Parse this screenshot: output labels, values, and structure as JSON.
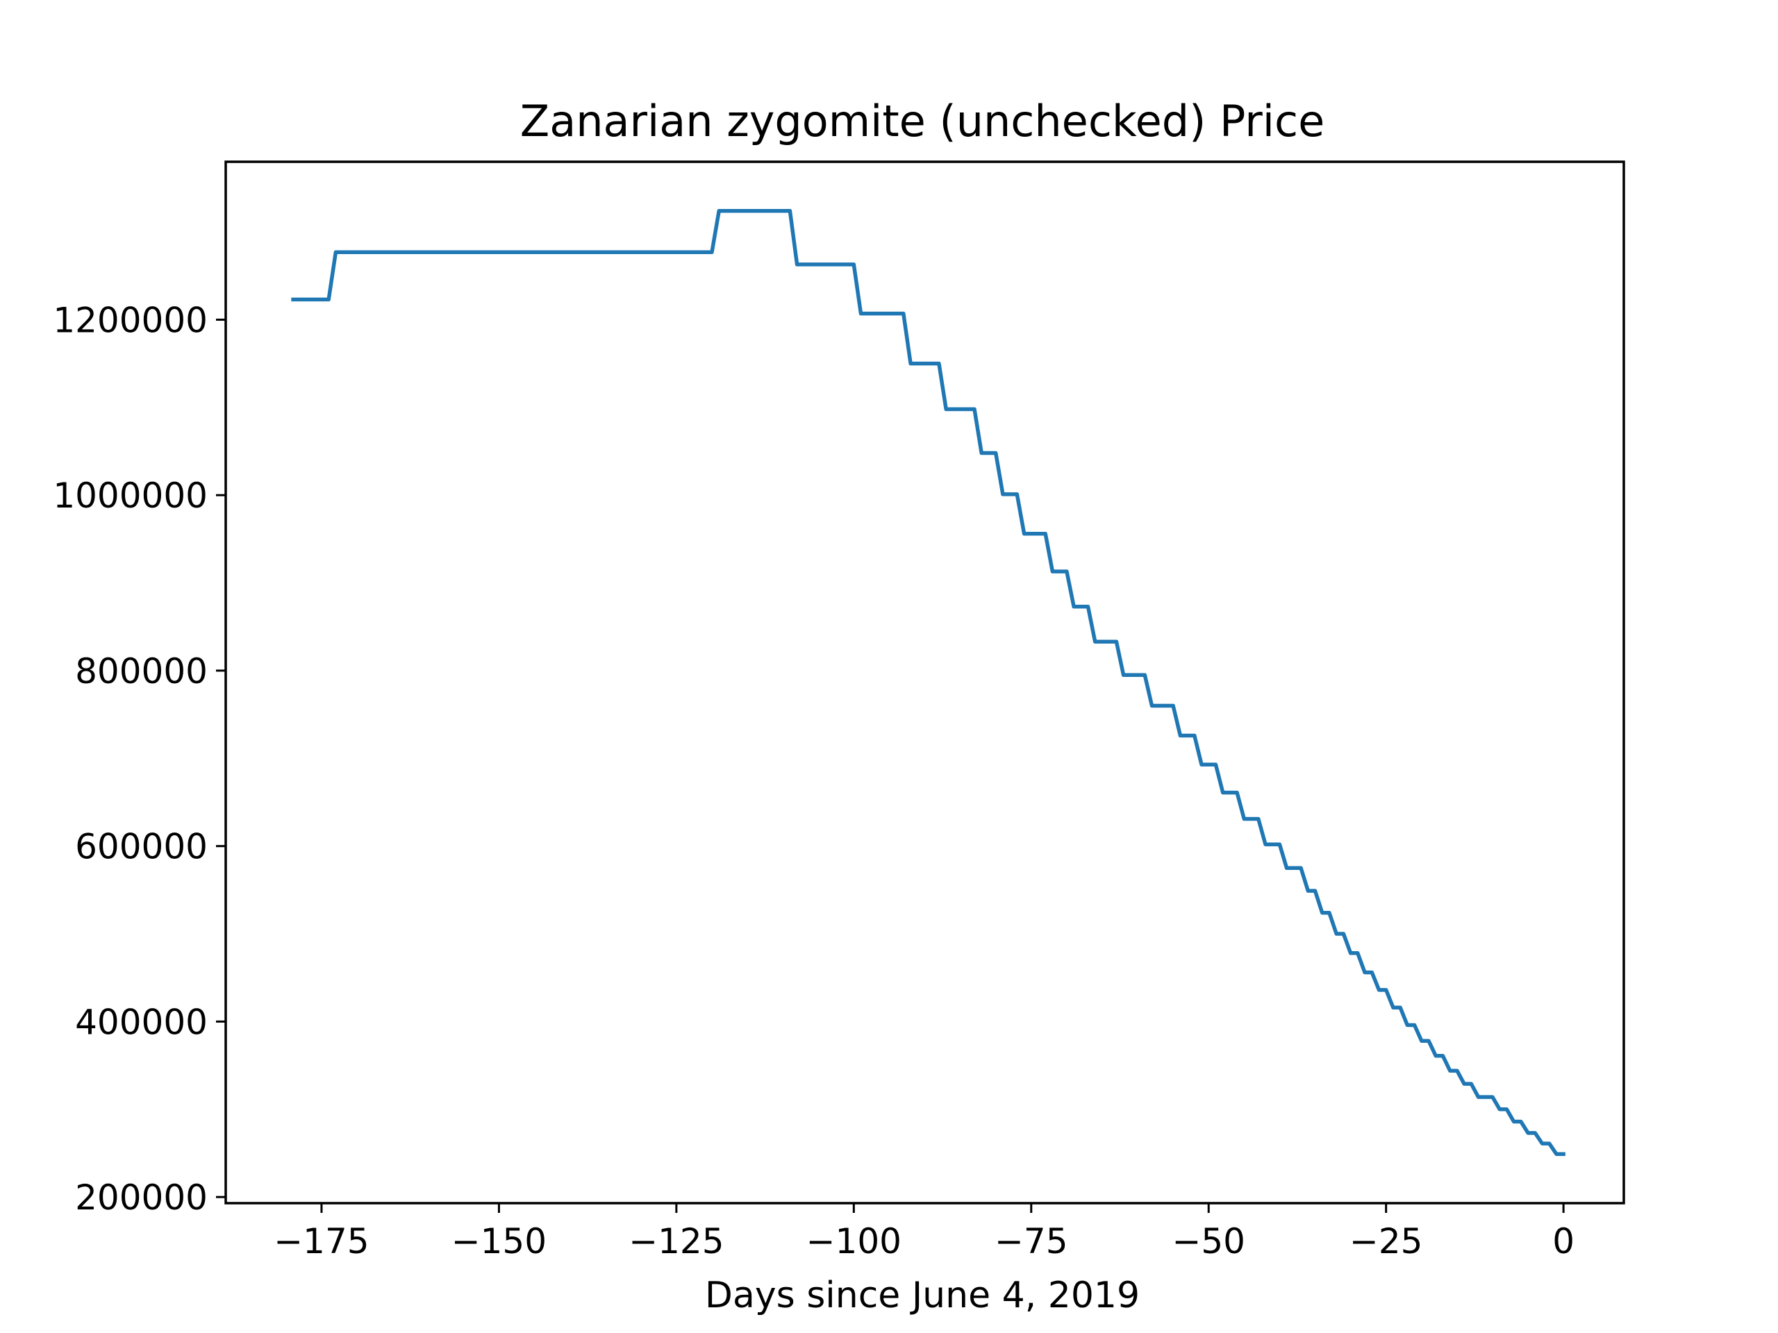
{
  "chart_data": {
    "type": "line",
    "title": "Zanarian zygomite (unchecked) Price",
    "xlabel": "Days since June 4, 2019",
    "ylabel": "",
    "xlim": [
      -188.5,
      8.5
    ],
    "ylim": [
      193000,
      1380000
    ],
    "grid": false,
    "legend": "none",
    "xticks": [
      -175,
      -150,
      -125,
      -100,
      -75,
      -50,
      -25,
      0
    ],
    "xtick_labels": [
      "−175",
      "−150",
      "−125",
      "−100",
      "−75",
      "−50",
      "−25",
      "0"
    ],
    "yticks": [
      200000,
      400000,
      600000,
      800000,
      1000000,
      1200000
    ],
    "ytick_labels": [
      "200000",
      "400000",
      "600000",
      "800000",
      "1000000",
      "1200000"
    ],
    "series": [
      {
        "color": "#1f77b4",
        "x": [
          -179,
          -174,
          -173,
          -120,
          -119,
          -109,
          -108,
          -100,
          -99,
          -93,
          -92,
          -88,
          -87,
          -83,
          -82,
          -80,
          -79,
          -77,
          -76,
          -73,
          -72,
          -70,
          -69,
          -67,
          -66,
          -63,
          -62,
          -59,
          -58,
          -55,
          -54,
          -52,
          -51,
          -49,
          -48,
          -46,
          -45,
          -43,
          -42,
          -40,
          -39,
          -37,
          -36,
          -35,
          -34,
          -33,
          -32,
          -31,
          -30,
          -29,
          -28,
          -27,
          -26,
          -25,
          -24,
          -23,
          -22,
          -21,
          -20,
          -19,
          -18,
          -17,
          -16,
          -15,
          -14,
          -13,
          -12,
          -10,
          -9,
          -8,
          -7,
          -6,
          -5,
          -4,
          -3,
          -2,
          -1,
          0
        ],
        "y": [
          1223000,
          1223000,
          1277000,
          1277000,
          1324000,
          1324000,
          1263000,
          1263000,
          1207000,
          1207000,
          1150000,
          1150000,
          1098000,
          1098000,
          1048000,
          1048000,
          1001000,
          1001000,
          956000,
          956000,
          913000,
          913000,
          873000,
          873000,
          833000,
          833000,
          795000,
          795000,
          760000,
          760000,
          726000,
          726000,
          693000,
          693000,
          661000,
          661000,
          631000,
          631000,
          602000,
          602000,
          575000,
          575000,
          549000,
          549000,
          524000,
          524000,
          500000,
          500000,
          478000,
          478000,
          456000,
          456000,
          436000,
          436000,
          416000,
          416000,
          396000,
          396000,
          378000,
          378000,
          361000,
          361000,
          344000,
          344000,
          329000,
          329000,
          314000,
          314000,
          300000,
          300000,
          286000,
          286000,
          273000,
          273000,
          261000,
          261000,
          249000,
          249000
        ]
      }
    ]
  }
}
